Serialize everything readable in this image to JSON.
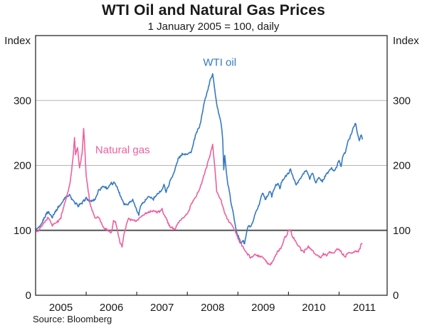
{
  "title": "WTI Oil and Natural Gas Prices",
  "subtitle": "1 January 2005 = 100, daily",
  "source": "Source: Bloomberg",
  "axis": {
    "left_label": "Index",
    "right_label": "Index"
  },
  "colors": {
    "wti": "#3579c1",
    "gas": "#ee5f9e",
    "grid": "#b5b5b5",
    "reference_line": "#555555",
    "frame": "#2b2b2b",
    "text": "#1a1a1a"
  },
  "chart_data": {
    "type": "line",
    "title": "WTI Oil and Natural Gas Prices",
    "subtitle": "1 January 2005 = 100, daily",
    "ylabel_left": "Index",
    "ylabel_right": "Index",
    "ylim": [
      0,
      400
    ],
    "xlim": [
      2005.0,
      2011.95
    ],
    "y_ticks": [
      0,
      100,
      200,
      300
    ],
    "x_tick_years": [
      2005,
      2006,
      2007,
      2008,
      2009,
      2010,
      2011
    ],
    "gridline_values": [
      200,
      300
    ],
    "reference_line": 100,
    "grid": "horizontal-only",
    "legend_position": "inline-annotations",
    "annotations": [
      {
        "text": "WTI oil",
        "x": 2008.64,
        "y": 358,
        "series": "wti"
      },
      {
        "text": "Natural gas",
        "x": 2006.72,
        "y": 224,
        "series": "gas"
      }
    ],
    "series": [
      {
        "name": "WTI oil",
        "color": "#3579c1",
        "points": [
          [
            2005.0,
            100
          ],
          [
            2005.08,
            104
          ],
          [
            2005.17,
            118
          ],
          [
            2005.25,
            130
          ],
          [
            2005.33,
            120
          ],
          [
            2005.42,
            133
          ],
          [
            2005.5,
            140
          ],
          [
            2005.58,
            150
          ],
          [
            2005.67,
            155
          ],
          [
            2005.71,
            148
          ],
          [
            2005.75,
            145
          ],
          [
            2005.83,
            138
          ],
          [
            2005.92,
            142
          ],
          [
            2006.0,
            150
          ],
          [
            2006.08,
            144
          ],
          [
            2006.17,
            148
          ],
          [
            2006.25,
            162
          ],
          [
            2006.33,
            168
          ],
          [
            2006.42,
            165
          ],
          [
            2006.5,
            172
          ],
          [
            2006.58,
            173
          ],
          [
            2006.67,
            155
          ],
          [
            2006.75,
            140
          ],
          [
            2006.83,
            140
          ],
          [
            2006.92,
            148
          ],
          [
            2007.0,
            130
          ],
          [
            2007.04,
            124
          ],
          [
            2007.08,
            140
          ],
          [
            2007.17,
            146
          ],
          [
            2007.25,
            152
          ],
          [
            2007.33,
            148
          ],
          [
            2007.42,
            157
          ],
          [
            2007.5,
            163
          ],
          [
            2007.54,
            170
          ],
          [
            2007.58,
            160
          ],
          [
            2007.67,
            178
          ],
          [
            2007.75,
            192
          ],
          [
            2007.83,
            213
          ],
          [
            2007.92,
            218
          ],
          [
            2008.0,
            218
          ],
          [
            2008.08,
            222
          ],
          [
            2008.17,
            248
          ],
          [
            2008.25,
            262
          ],
          [
            2008.33,
            295
          ],
          [
            2008.42,
            322
          ],
          [
            2008.5,
            342
          ],
          [
            2008.52,
            330
          ],
          [
            2008.54,
            318
          ],
          [
            2008.58,
            295
          ],
          [
            2008.63,
            278
          ],
          [
            2008.67,
            262
          ],
          [
            2008.7,
            240
          ],
          [
            2008.72,
            195
          ],
          [
            2008.74,
            215
          ],
          [
            2008.77,
            190
          ],
          [
            2008.8,
            172
          ],
          [
            2008.83,
            160
          ],
          [
            2008.87,
            140
          ],
          [
            2008.9,
            128
          ],
          [
            2008.94,
            112
          ],
          [
            2008.98,
            96
          ],
          [
            2009.02,
            88
          ],
          [
            2009.06,
            80
          ],
          [
            2009.1,
            84
          ],
          [
            2009.13,
            78
          ],
          [
            2009.17,
            96
          ],
          [
            2009.21,
            108
          ],
          [
            2009.25,
            105
          ],
          [
            2009.29,
            110
          ],
          [
            2009.33,
            122
          ],
          [
            2009.42,
            140
          ],
          [
            2009.46,
            152
          ],
          [
            2009.5,
            158
          ],
          [
            2009.54,
            148
          ],
          [
            2009.58,
            152
          ],
          [
            2009.63,
            160
          ],
          [
            2009.67,
            152
          ],
          [
            2009.71,
            162
          ],
          [
            2009.75,
            170
          ],
          [
            2009.79,
            173
          ],
          [
            2009.83,
            165
          ],
          [
            2009.88,
            178
          ],
          [
            2009.92,
            182
          ],
          [
            2010.0,
            188
          ],
          [
            2010.04,
            194
          ],
          [
            2010.1,
            180
          ],
          [
            2010.15,
            169
          ],
          [
            2010.21,
            178
          ],
          [
            2010.29,
            186
          ],
          [
            2010.35,
            194
          ],
          [
            2010.42,
            180
          ],
          [
            2010.47,
            188
          ],
          [
            2010.54,
            174
          ],
          [
            2010.6,
            181
          ],
          [
            2010.67,
            176
          ],
          [
            2010.73,
            184
          ],
          [
            2010.79,
            190
          ],
          [
            2010.85,
            196
          ],
          [
            2010.9,
            190
          ],
          [
            2010.96,
            200
          ],
          [
            2011.0,
            208
          ],
          [
            2011.04,
            200
          ],
          [
            2011.08,
            215
          ],
          [
            2011.13,
            222
          ],
          [
            2011.17,
            235
          ],
          [
            2011.21,
            242
          ],
          [
            2011.25,
            250
          ],
          [
            2011.29,
            260
          ],
          [
            2011.33,
            266
          ],
          [
            2011.36,
            250
          ],
          [
            2011.4,
            238
          ],
          [
            2011.44,
            248
          ],
          [
            2011.46,
            240
          ]
        ]
      },
      {
        "name": "Natural gas",
        "color": "#ee5f9e",
        "points": [
          [
            2005.0,
            100
          ],
          [
            2005.04,
            97
          ],
          [
            2005.08,
            103
          ],
          [
            2005.17,
            112
          ],
          [
            2005.25,
            120
          ],
          [
            2005.33,
            108
          ],
          [
            2005.42,
            112
          ],
          [
            2005.5,
            120
          ],
          [
            2005.58,
            142
          ],
          [
            2005.67,
            168
          ],
          [
            2005.71,
            190
          ],
          [
            2005.75,
            222
          ],
          [
            2005.77,
            244
          ],
          [
            2005.79,
            215
          ],
          [
            2005.83,
            228
          ],
          [
            2005.87,
            195
          ],
          [
            2005.92,
            220
          ],
          [
            2005.95,
            258
          ],
          [
            2005.97,
            232
          ],
          [
            2006.0,
            185
          ],
          [
            2006.04,
            160
          ],
          [
            2006.08,
            140
          ],
          [
            2006.13,
            128
          ],
          [
            2006.17,
            120
          ],
          [
            2006.25,
            120
          ],
          [
            2006.33,
            105
          ],
          [
            2006.42,
            100
          ],
          [
            2006.5,
            98
          ],
          [
            2006.54,
            115
          ],
          [
            2006.58,
            112
          ],
          [
            2006.63,
            95
          ],
          [
            2006.67,
            80
          ],
          [
            2006.71,
            74
          ],
          [
            2006.75,
            95
          ],
          [
            2006.83,
            118
          ],
          [
            2006.92,
            115
          ],
          [
            2007.0,
            115
          ],
          [
            2007.08,
            122
          ],
          [
            2007.17,
            125
          ],
          [
            2007.25,
            128
          ],
          [
            2007.33,
            130
          ],
          [
            2007.42,
            128
          ],
          [
            2007.5,
            132
          ],
          [
            2007.58,
            118
          ],
          [
            2007.67,
            104
          ],
          [
            2007.75,
            102
          ],
          [
            2007.83,
            112
          ],
          [
            2007.92,
            120
          ],
          [
            2008.0,
            125
          ],
          [
            2008.08,
            140
          ],
          [
            2008.17,
            152
          ],
          [
            2008.25,
            165
          ],
          [
            2008.33,
            185
          ],
          [
            2008.42,
            208
          ],
          [
            2008.5,
            233
          ],
          [
            2008.54,
            200
          ],
          [
            2008.58,
            160
          ],
          [
            2008.67,
            145
          ],
          [
            2008.75,
            125
          ],
          [
            2008.83,
            112
          ],
          [
            2008.92,
            104
          ],
          [
            2008.96,
            96
          ],
          [
            2009.0,
            88
          ],
          [
            2009.08,
            77
          ],
          [
            2009.17,
            65
          ],
          [
            2009.25,
            58
          ],
          [
            2009.33,
            62
          ],
          [
            2009.42,
            60
          ],
          [
            2009.5,
            58
          ],
          [
            2009.58,
            50
          ],
          [
            2009.63,
            46
          ],
          [
            2009.71,
            55
          ],
          [
            2009.75,
            62
          ],
          [
            2009.79,
            68
          ],
          [
            2009.85,
            72
          ],
          [
            2009.92,
            88
          ],
          [
            2009.96,
            93
          ],
          [
            2010.0,
            98
          ],
          [
            2010.04,
            100
          ],
          [
            2010.08,
            90
          ],
          [
            2010.13,
            84
          ],
          [
            2010.19,
            76
          ],
          [
            2010.25,
            70
          ],
          [
            2010.31,
            67
          ],
          [
            2010.38,
            75
          ],
          [
            2010.44,
            71
          ],
          [
            2010.5,
            67
          ],
          [
            2010.56,
            62
          ],
          [
            2010.63,
            58
          ],
          [
            2010.69,
            64
          ],
          [
            2010.75,
            60
          ],
          [
            2010.81,
            68
          ],
          [
            2010.88,
            64
          ],
          [
            2010.94,
            70
          ],
          [
            2011.0,
            72
          ],
          [
            2011.06,
            64
          ],
          [
            2011.13,
            60
          ],
          [
            2011.19,
            67
          ],
          [
            2011.25,
            64
          ],
          [
            2011.31,
            69
          ],
          [
            2011.38,
            67
          ],
          [
            2011.44,
            78
          ],
          [
            2011.46,
            80
          ]
        ]
      }
    ],
    "source": "Source: Bloomberg"
  }
}
